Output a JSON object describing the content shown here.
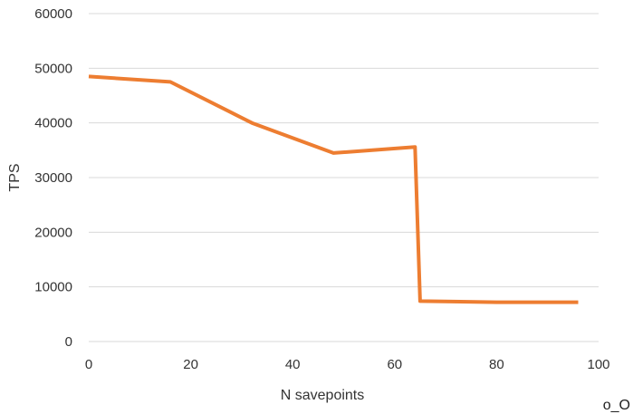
{
  "chart_data": {
    "type": "line",
    "title": "",
    "xlabel": "N savepoints",
    "ylabel": "TPS",
    "xlim": [
      0,
      100
    ],
    "ylim": [
      0,
      60000
    ],
    "x_ticks": [
      0,
      20,
      40,
      60,
      80,
      100
    ],
    "y_ticks": [
      0,
      10000,
      20000,
      30000,
      40000,
      50000,
      60000
    ],
    "x_tick_labels": [
      "0",
      "20",
      "40",
      "60",
      "80",
      "100"
    ],
    "y_tick_labels": [
      "0",
      "10000",
      "20000",
      "30000",
      "40000",
      "50000",
      "60000"
    ],
    "grid": "horizontal",
    "legend": "none",
    "series": [
      {
        "color": "#ed7d31",
        "x": [
          0,
          16,
          32,
          48,
          64,
          65,
          80,
          96
        ],
        "y": [
          48500,
          47500,
          40000,
          34500,
          35600,
          7400,
          7200,
          7200
        ]
      }
    ]
  },
  "annotation": {
    "text": "o_O"
  },
  "colors": {
    "gridline": "#d9d9d9",
    "series": "#ed7d31",
    "text": "#333333"
  }
}
